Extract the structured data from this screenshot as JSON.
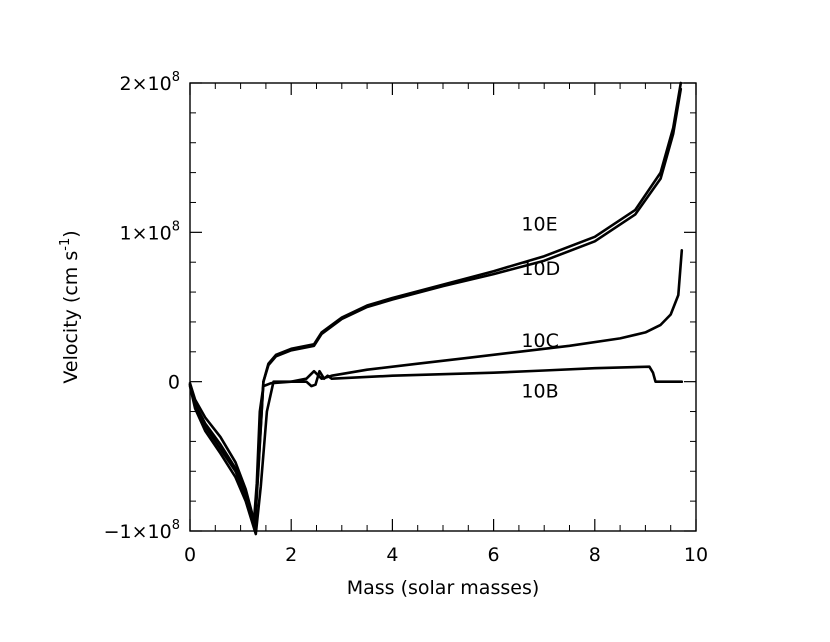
{
  "chart_data": {
    "type": "line",
    "title": "",
    "xlabel": "Mass (solar masses)",
    "ylabel_main": "Velocity (cm s",
    "ylabel_sup": "-1",
    "ylabel_close": ")",
    "xlim": [
      0,
      10
    ],
    "ylim": [
      -100000000,
      200000000
    ],
    "grid": false,
    "x_ticks": [
      {
        "value": 0,
        "label": "0"
      },
      {
        "value": 2,
        "label": "2"
      },
      {
        "value": 4,
        "label": "4"
      },
      {
        "value": 6,
        "label": "6"
      },
      {
        "value": 8,
        "label": "8"
      },
      {
        "value": 10,
        "label": "10"
      }
    ],
    "y_ticks": [
      {
        "value": -100000000,
        "mantissa": "−1×10",
        "exponent": "8"
      },
      {
        "value": 0,
        "mantissa": "0",
        "exponent": ""
      },
      {
        "value": 100000000,
        "mantissa": "1×10",
        "exponent": "8"
      },
      {
        "value": 200000000,
        "mantissa": "2×10",
        "exponent": "8"
      }
    ],
    "series": [
      {
        "name": "10E",
        "label_at": [
          6.55,
          106000000
        ],
        "x": [
          0.0,
          0.1,
          0.3,
          0.6,
          0.9,
          1.1,
          1.28,
          1.35,
          1.45,
          1.55,
          1.7,
          2.0,
          2.45,
          2.6,
          3.0,
          3.5,
          4.0,
          5.0,
          6.0,
          7.0,
          8.0,
          8.8,
          9.3,
          9.55,
          9.7
        ],
        "y": [
          -2000000,
          -15000000,
          -28000000,
          -42000000,
          -58000000,
          -75000000,
          -98000000,
          -60000000,
          0,
          12000000,
          18000000,
          22000000,
          25000000,
          33000000,
          43000000,
          51000000,
          56000000,
          65000000,
          74000000,
          84000000,
          97000000,
          115000000,
          140000000,
          170000000,
          200000000
        ]
      },
      {
        "name": "10D",
        "label_at": [
          6.55,
          76000000
        ],
        "x": [
          0.0,
          0.1,
          0.3,
          0.6,
          0.9,
          1.1,
          1.28,
          1.35,
          1.45,
          1.55,
          1.7,
          2.0,
          2.45,
          2.6,
          3.0,
          3.5,
          4.0,
          5.0,
          6.0,
          7.0,
          8.0,
          8.8,
          9.3,
          9.55,
          9.7
        ],
        "y": [
          -1000000,
          -12000000,
          -24000000,
          -37000000,
          -54000000,
          -72000000,
          -95000000,
          -58000000,
          0,
          11000000,
          17000000,
          21000000,
          24000000,
          32000000,
          42000000,
          50000000,
          55000000,
          64000000,
          72000000,
          81000000,
          94000000,
          112000000,
          136000000,
          166000000,
          196000000
        ]
      },
      {
        "name": "10C",
        "label_at": [
          6.55,
          28000000
        ],
        "x": [
          0.0,
          0.1,
          0.3,
          0.6,
          0.9,
          1.1,
          1.3,
          1.4,
          1.52,
          1.65,
          2.0,
          2.3,
          2.45,
          2.6,
          2.8,
          3.5,
          4.5,
          5.5,
          6.5,
          7.5,
          8.5,
          9.0,
          9.3,
          9.5,
          9.65,
          9.72
        ],
        "y": [
          -3000000,
          -18000000,
          -33000000,
          -48000000,
          -64000000,
          -80000000,
          -102000000,
          -70000000,
          -20000000,
          0,
          0,
          2000000,
          7000000,
          2000000,
          4000000,
          8000000,
          12000000,
          16000000,
          20000000,
          24000000,
          29000000,
          33000000,
          38000000,
          45000000,
          58000000,
          88000000
        ]
      },
      {
        "name": "10B",
        "label_at": [
          6.55,
          -6000000
        ],
        "x": [
          0.0,
          0.1,
          0.3,
          0.6,
          0.9,
          1.1,
          1.2,
          1.26,
          1.32,
          1.38,
          1.45,
          1.6,
          2.0,
          2.3,
          2.4,
          2.48,
          2.56,
          2.65,
          2.72,
          2.8,
          4.0,
          5.0,
          6.0,
          7.0,
          8.0,
          9.08,
          9.15,
          9.2,
          9.5,
          9.72
        ],
        "y": [
          -2000000,
          -15000000,
          -30000000,
          -45000000,
          -60000000,
          -76000000,
          -88000000,
          -95000000,
          -68000000,
          -20000000,
          -3000000,
          -1000000,
          0,
          0,
          -3000000,
          -2000000,
          7000000,
          2000000,
          4000000,
          2000000,
          4000000,
          5000000,
          6000000,
          7500000,
          9000000,
          10000000,
          6000000,
          0,
          0,
          0
        ]
      }
    ]
  }
}
